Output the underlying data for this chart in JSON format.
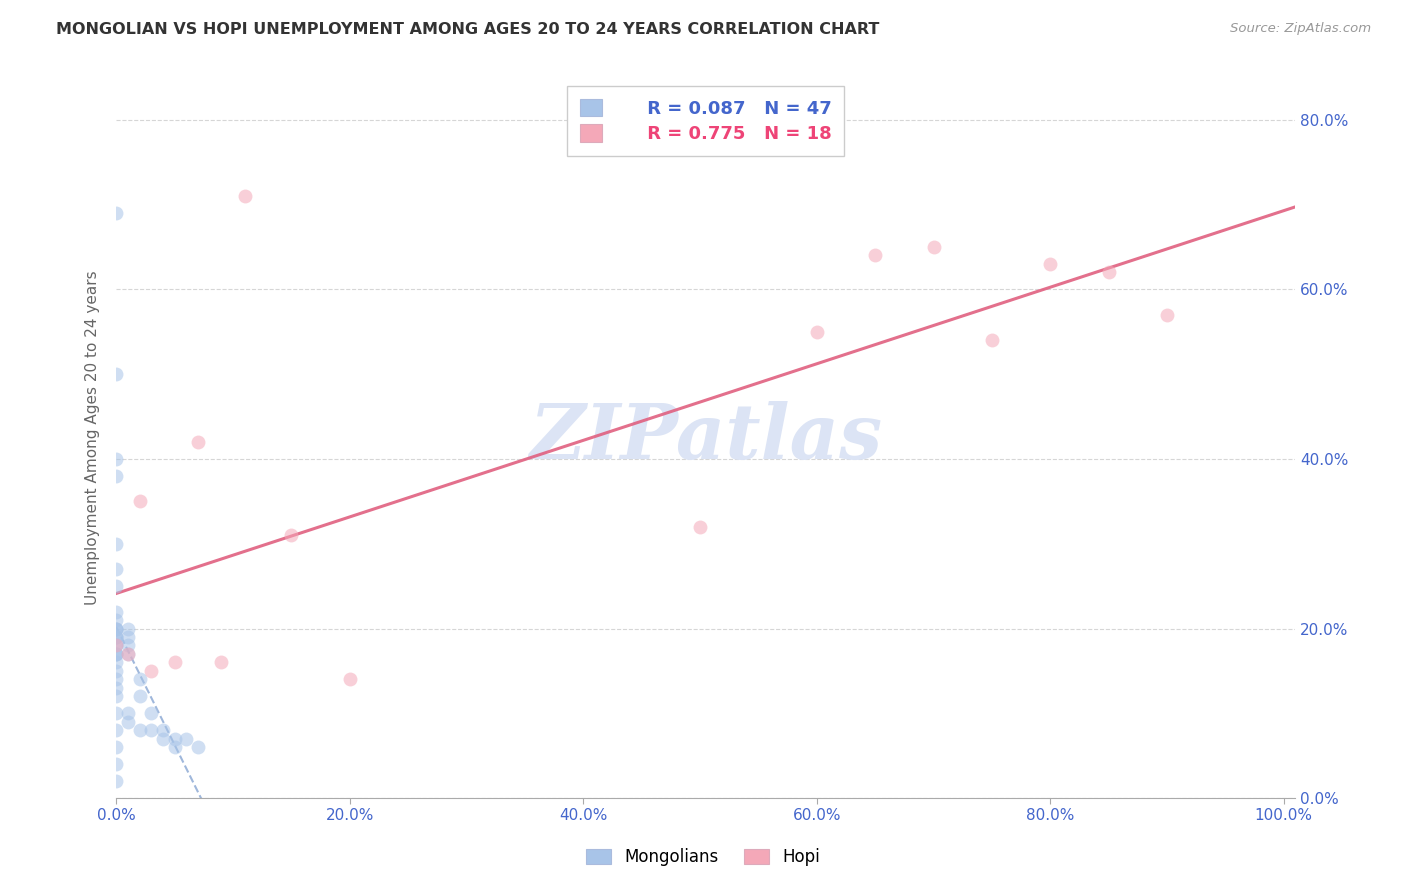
{
  "title": "MONGOLIAN VS HOPI UNEMPLOYMENT AMONG AGES 20 TO 24 YEARS CORRELATION CHART",
  "source": "Source: ZipAtlas.com",
  "ylabel": "Unemployment Among Ages 20 to 24 years",
  "mongolian_R": 0.087,
  "mongolian_N": 47,
  "hopi_R": 0.775,
  "hopi_N": 18,
  "mongolian_color": "#a8c4e8",
  "hopi_color": "#f4a8b8",
  "mongolian_line_color": "#7799cc",
  "hopi_line_color": "#e06080",
  "axis_label_color": "#4466cc",
  "title_color": "#333333",
  "background_color": "#ffffff",
  "grid_color": "#cccccc",
  "watermark_color": "#dce4f5",
  "mongolian_x": [
    0.0,
    0.0,
    0.0,
    0.0,
    0.0,
    0.0,
    0.0,
    0.0,
    0.0,
    0.0,
    0.0,
    0.0,
    0.0,
    0.0,
    0.0,
    0.0,
    0.0,
    0.0,
    0.0,
    0.0,
    0.0,
    0.0,
    0.0,
    0.0,
    0.0,
    0.0,
    0.0,
    0.0,
    0.0,
    0.0,
    0.01,
    0.01,
    0.01,
    0.01,
    0.01,
    0.01,
    0.02,
    0.02,
    0.02,
    0.03,
    0.03,
    0.04,
    0.04,
    0.05,
    0.05,
    0.06,
    0.07
  ],
  "mongolian_y": [
    0.69,
    0.5,
    0.4,
    0.38,
    0.3,
    0.27,
    0.25,
    0.22,
    0.21,
    0.2,
    0.2,
    0.2,
    0.19,
    0.19,
    0.19,
    0.18,
    0.18,
    0.17,
    0.17,
    0.17,
    0.16,
    0.15,
    0.14,
    0.13,
    0.12,
    0.1,
    0.08,
    0.06,
    0.04,
    0.02,
    0.2,
    0.19,
    0.18,
    0.17,
    0.1,
    0.09,
    0.14,
    0.12,
    0.08,
    0.1,
    0.08,
    0.08,
    0.07,
    0.07,
    0.06,
    0.07,
    0.06
  ],
  "hopi_x": [
    0.0,
    0.01,
    0.02,
    0.03,
    0.05,
    0.07,
    0.09,
    0.11,
    0.15,
    0.2,
    0.5,
    0.6,
    0.65,
    0.7,
    0.75,
    0.8,
    0.85,
    0.9
  ],
  "hopi_y": [
    0.18,
    0.17,
    0.35,
    0.15,
    0.16,
    0.42,
    0.16,
    0.71,
    0.31,
    0.14,
    0.32,
    0.55,
    0.64,
    0.65,
    0.54,
    0.63,
    0.62,
    0.57
  ],
  "xlim": [
    0.0,
    1.01
  ],
  "ylim": [
    0.0,
    0.85
  ],
  "xticks": [
    0.0,
    0.2,
    0.4,
    0.6,
    0.8,
    1.0
  ],
  "xtick_labels": [
    "0.0%",
    "20.0%",
    "40.0%",
    "60.0%",
    "80.0%",
    "100.0%"
  ],
  "yticks": [
    0.0,
    0.2,
    0.4,
    0.6,
    0.8
  ],
  "ytick_labels": [
    "0.0%",
    "20.0%",
    "40.0%",
    "60.0%",
    "80.0%"
  ],
  "marker_size": 100,
  "marker_alpha": 0.55,
  "legend_R_color": "#4466cc",
  "legend_N_color": "#4466cc",
  "legend_hopi_color": "#ee4477"
}
